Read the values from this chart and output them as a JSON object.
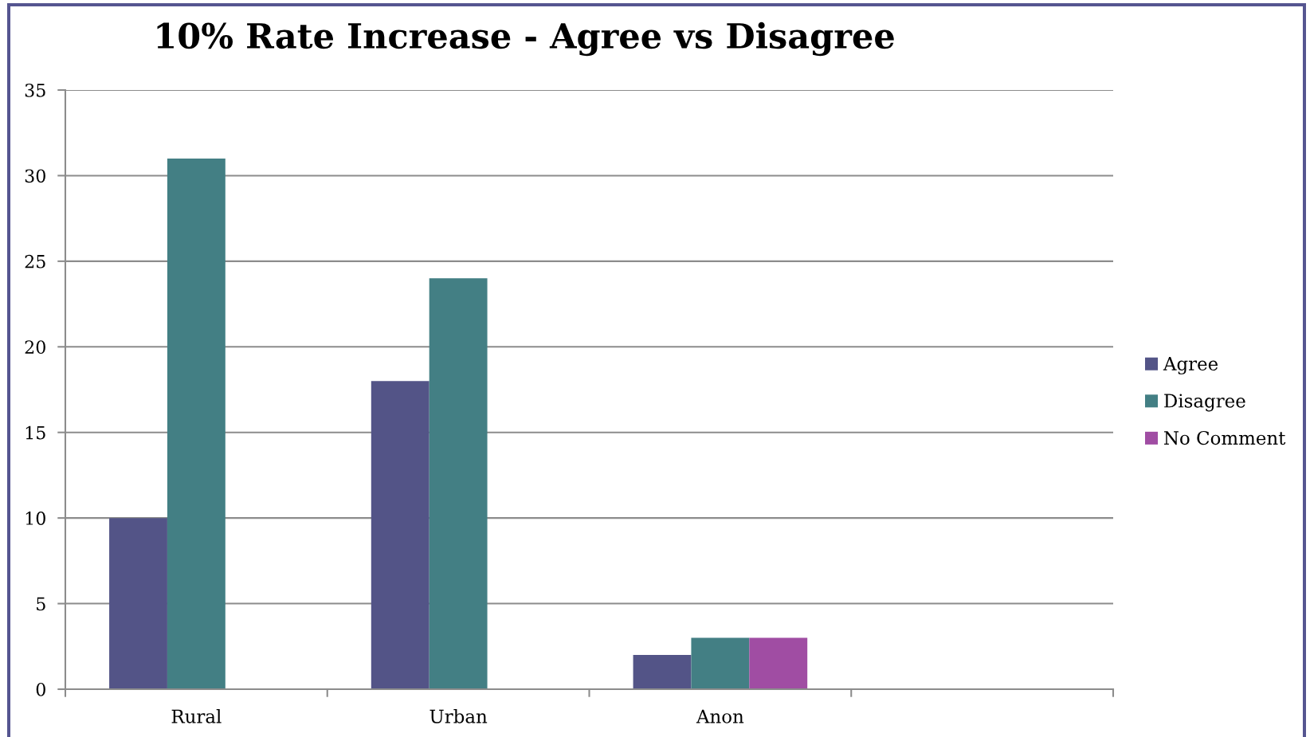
{
  "chart_data": {
    "type": "bar",
    "title": "10% Rate Increase - Agree vs Disagree",
    "categories": [
      "Rural",
      "Urban",
      "Anon",
      null
    ],
    "series": [
      {
        "name": "Agree",
        "color": "#535487",
        "values": [
          10,
          18,
          2,
          null
        ]
      },
      {
        "name": "Disagree",
        "color": "#437f84",
        "values": [
          31,
          24,
          3,
          null
        ]
      },
      {
        "name": "No Comment",
        "color": "#a04da3",
        "values": [
          null,
          null,
          3,
          null
        ]
      }
    ],
    "ylim": [
      0,
      35
    ],
    "yticks": [
      0,
      5,
      10,
      15,
      20,
      25,
      30,
      35
    ],
    "grid": "y",
    "legend": "right"
  }
}
